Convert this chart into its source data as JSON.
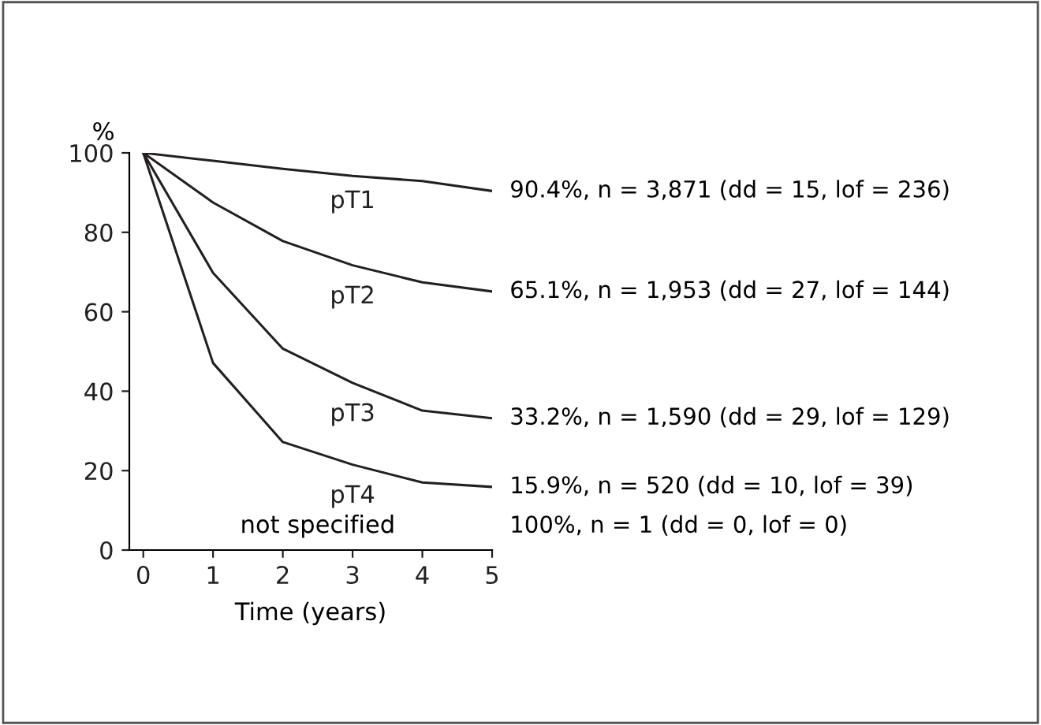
{
  "chart_data": {
    "type": "line",
    "ylabel": "%",
    "xlabel": "Time (years)",
    "x": [
      0,
      1,
      2,
      3,
      4,
      5
    ],
    "xlim": [
      -0.2,
      5
    ],
    "xticks": [
      0,
      1,
      2,
      3,
      4,
      5
    ],
    "ylim": [
      0,
      100
    ],
    "yticks": [
      0,
      20,
      40,
      60,
      80,
      100
    ],
    "grid": false,
    "legend": false,
    "marker": "none",
    "line_style": "solid",
    "series": [
      {
        "name": "pT1",
        "color": "#231f20",
        "values": [
          100,
          98,
          96,
          94.2,
          92.9,
          90.4
        ]
      },
      {
        "name": "pT2",
        "color": "#231f20",
        "values": [
          100,
          87.5,
          77.8,
          71.7,
          67.4,
          65.1
        ]
      },
      {
        "name": "pT3",
        "color": "#231f20",
        "values": [
          100,
          69.8,
          50.7,
          42.1,
          35.1,
          33.2
        ]
      },
      {
        "name": "pT4",
        "color": "#231f20",
        "values": [
          100,
          47.1,
          27.2,
          21.5,
          17.0,
          15.9
        ]
      }
    ],
    "annotations": [
      "90.4%, n = 3,871 (dd = 15, lof = 236)",
      "65.1%, n = 1,953 (dd = 27, lof = 144)",
      "33.2%, n = 1,590 (dd = 29, lof = 129)",
      "15.9%, n = 520 (dd = 10, lof = 39)",
      "not specified",
      "100%, n = 1 (dd = 0, lof = 0)"
    ]
  }
}
